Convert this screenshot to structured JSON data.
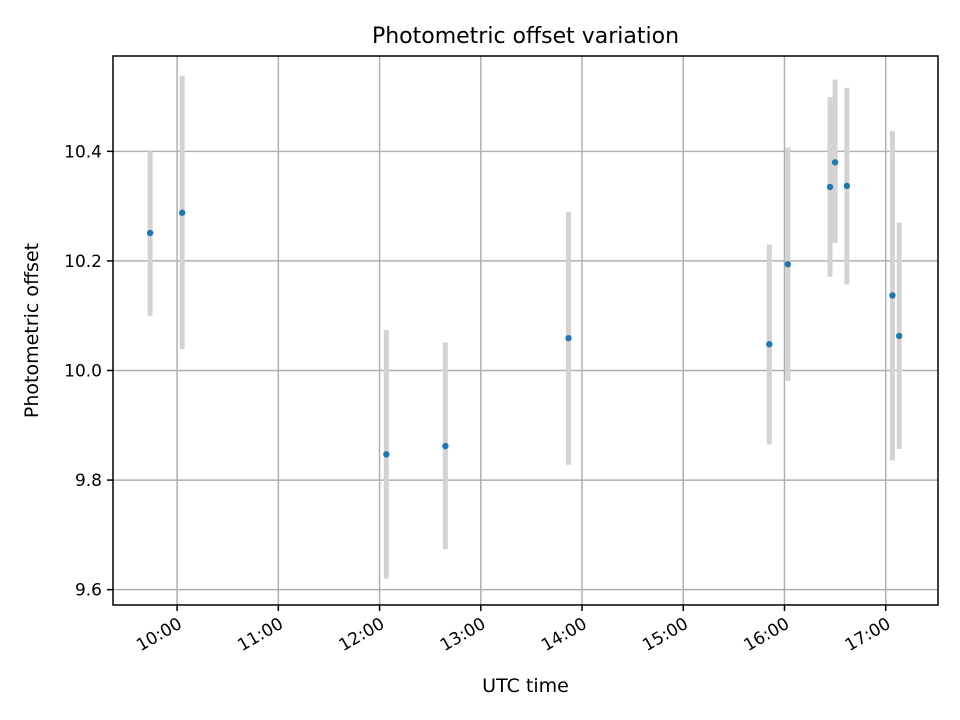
{
  "chart_data": {
    "type": "scatter",
    "title": "Photometric offset variation",
    "xlabel": "UTC time",
    "ylabel": "Photometric offset",
    "x_type": "time",
    "xlim": [
      "09:22",
      "17:31"
    ],
    "ylim": [
      9.572,
      10.574
    ],
    "x_ticks": [
      "10:00",
      "11:00",
      "12:00",
      "13:00",
      "14:00",
      "15:00",
      "16:00",
      "17:00"
    ],
    "y_ticks": [
      9.6,
      9.8,
      10.0,
      10.2,
      10.4
    ],
    "y_tick_labels": [
      "9.6",
      "9.8",
      "10.0",
      "10.2",
      "10.4"
    ],
    "grid": true,
    "marker_color": "#1f77b4",
    "errorbar_color": "#d3d3d3",
    "points": [
      {
        "x": "09:44",
        "y": 10.251,
        "y_low": 10.1,
        "y_high": 10.4
      },
      {
        "x": "10:03",
        "y": 10.288,
        "y_low": 10.039,
        "y_high": 10.538
      },
      {
        "x": "12:04",
        "y": 9.847,
        "y_low": 9.62,
        "y_high": 10.074
      },
      {
        "x": "12:39",
        "y": 9.862,
        "y_low": 9.674,
        "y_high": 10.051
      },
      {
        "x": "13:52",
        "y": 10.059,
        "y_low": 9.828,
        "y_high": 10.289
      },
      {
        "x": "15:51",
        "y": 10.048,
        "y_low": 9.865,
        "y_high": 10.23
      },
      {
        "x": "16:02",
        "y": 10.194,
        "y_low": 9.981,
        "y_high": 10.407
      },
      {
        "x": "16:27",
        "y": 10.335,
        "y_low": 10.171,
        "y_high": 10.499
      },
      {
        "x": "16:30",
        "y": 10.38,
        "y_low": 10.233,
        "y_high": 10.531
      },
      {
        "x": "16:37",
        "y": 10.337,
        "y_low": 10.157,
        "y_high": 10.516
      },
      {
        "x": "17:04",
        "y": 10.137,
        "y_low": 9.836,
        "y_high": 10.437
      },
      {
        "x": "17:08",
        "y": 10.063,
        "y_low": 9.857,
        "y_high": 10.27
      }
    ]
  }
}
